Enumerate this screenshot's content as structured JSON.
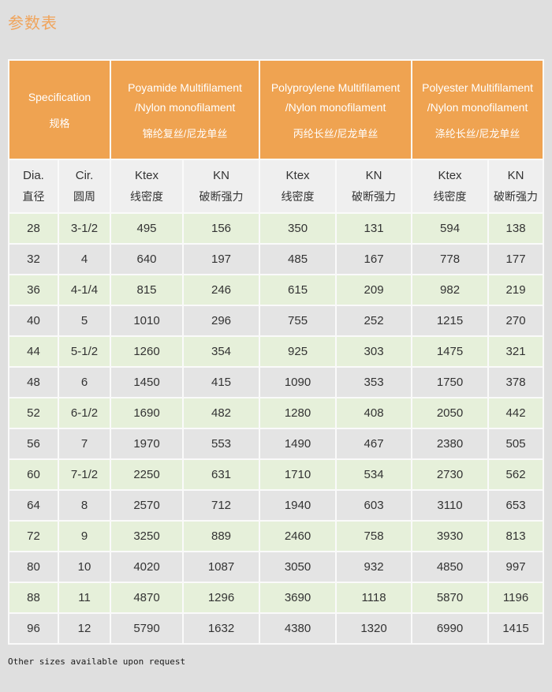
{
  "page": {
    "title": "参数表",
    "footer": "Other sizes available upon request"
  },
  "colors": {
    "page_background": "#dfdfdf",
    "accent_orange": "#efa351",
    "header_text": "#ffffff",
    "row_green": "#e6f0da",
    "row_gray": "#e4e4e4",
    "subheader_background": "#efefef",
    "body_text": "#333333"
  },
  "table": {
    "groups": [
      {
        "lines": [
          "Specification",
          "规格"
        ]
      },
      {
        "lines": [
          "Poyamide Multifilament",
          "/Nylon monofilament",
          "锦纶复丝/尼龙单丝"
        ]
      },
      {
        "lines": [
          "Polyproylene Multifilament",
          "/Nylon monofilament",
          "丙纶长丝/尼龙单丝"
        ]
      },
      {
        "lines": [
          "Polyester Multifilament",
          "/Nylon monofilament",
          "涤纶长丝/尼龙单丝"
        ]
      }
    ],
    "columns": [
      {
        "en": "Dia.",
        "zh": "直径"
      },
      {
        "en": "Cir.",
        "zh": "圆周"
      },
      {
        "en": "Ktex",
        "zh": "线密度"
      },
      {
        "en": "KN",
        "zh": "破断强力"
      },
      {
        "en": "Ktex",
        "zh": "线密度"
      },
      {
        "en": "KN",
        "zh": "破断强力"
      },
      {
        "en": "Ktex",
        "zh": "线密度"
      },
      {
        "en": "KN",
        "zh": "破断强力"
      }
    ],
    "rows": [
      [
        "28",
        "3-1/2",
        "495",
        "156",
        "350",
        "131",
        "594",
        "138"
      ],
      [
        "32",
        "4",
        "640",
        "197",
        "485",
        "167",
        "778",
        "177"
      ],
      [
        "36",
        "4-1/4",
        "815",
        "246",
        "615",
        "209",
        "982",
        "219"
      ],
      [
        "40",
        "5",
        "1010",
        "296",
        "755",
        "252",
        "1215",
        "270"
      ],
      [
        "44",
        "5-1/2",
        "1260",
        "354",
        "925",
        "303",
        "1475",
        "321"
      ],
      [
        "48",
        "6",
        "1450",
        "415",
        "1090",
        "353",
        "1750",
        "378"
      ],
      [
        "52",
        "6-1/2",
        "1690",
        "482",
        "1280",
        "408",
        "2050",
        "442"
      ],
      [
        "56",
        "7",
        "1970",
        "553",
        "1490",
        "467",
        "2380",
        "505"
      ],
      [
        "60",
        "7-1/2",
        "2250",
        "631",
        "1710",
        "534",
        "2730",
        "562"
      ],
      [
        "64",
        "8",
        "2570",
        "712",
        "1940",
        "603",
        "3110",
        "653"
      ],
      [
        "72",
        "9",
        "3250",
        "889",
        "2460",
        "758",
        "3930",
        "813"
      ],
      [
        "80",
        "10",
        "4020",
        "1087",
        "3050",
        "932",
        "4850",
        "997"
      ],
      [
        "88",
        "11",
        "4870",
        "1296",
        "3690",
        "1118",
        "5870",
        "1196"
      ],
      [
        "96",
        "12",
        "5790",
        "1632",
        "4380",
        "1320",
        "6990",
        "1415"
      ]
    ]
  }
}
